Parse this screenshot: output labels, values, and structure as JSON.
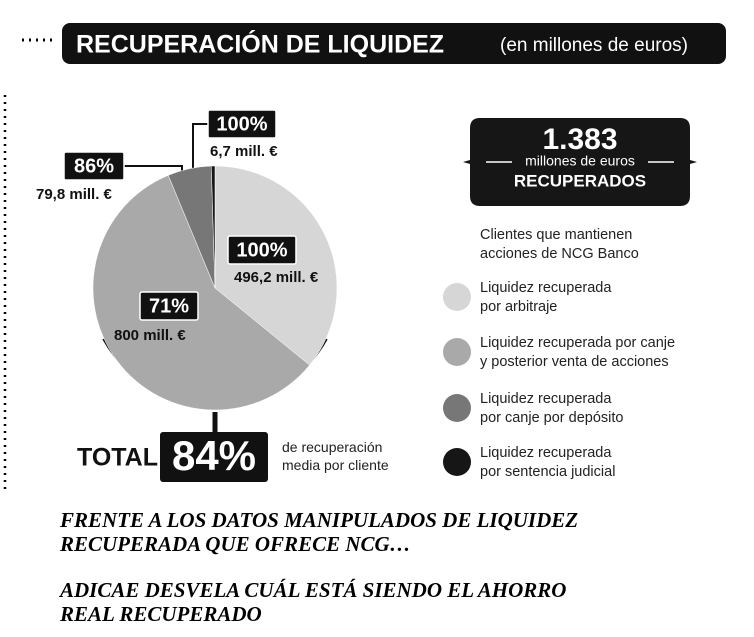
{
  "chart_data": {
    "type": "pie",
    "title": "RECUPERACIÓN DE LIQUIDEZ",
    "subtitle": "(en millones de euros)",
    "legend_title": "Clientes que mantienen\nacciones de NCG Banco",
    "categories": [
      "Liquidez recuperada\npor arbitraje",
      "Liquidez recuperada por canje\ny posterior venta de acciones",
      "Liquidez recuperada\npor canje por depósito",
      "Liquidez recuperada\npor sentencia judicial"
    ],
    "values": [
      496.2,
      800,
      79.8,
      6.7
    ],
    "value_labels": [
      "496,2 mill. €",
      "800 mill. €",
      "79,8 mill. €",
      "6,7 mill. €"
    ],
    "recovery_labels": [
      "100%",
      "71%",
      "86%",
      "100%"
    ],
    "colors": [
      "#d6d6d6",
      "#a9a9a9",
      "#777777",
      "#161616"
    ],
    "badge": {
      "amount": "1.383",
      "unit": "millones de euros",
      "caption": "RECUPERADOS"
    },
    "total": {
      "label": "TOTAL",
      "value_label": "84%",
      "note": "de recuperación\nmedia por cliente"
    }
  },
  "headlines": [
    "FRENTE A LOS DATOS MANIPULADOS DE LIQUIDEZ\nRECUPERADA QUE OFRECE NCG…",
    "ADICAE DESVELA CUÁL ESTÁ SIENDO EL AHORRO\nREAL RECUPERADO"
  ]
}
